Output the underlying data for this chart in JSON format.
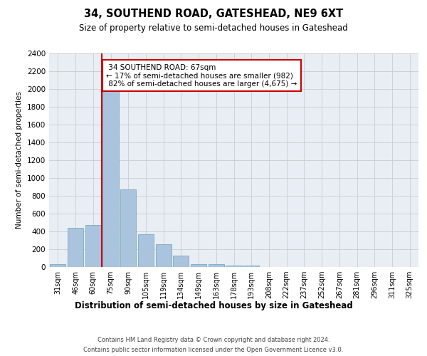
{
  "title": "34, SOUTHEND ROAD, GATESHEAD, NE9 6XT",
  "subtitle": "Size of property relative to semi-detached houses in Gateshead",
  "xlabel": "Distribution of semi-detached houses by size in Gateshead",
  "ylabel": "Number of semi-detached properties",
  "bar_labels": [
    "31sqm",
    "46sqm",
    "60sqm",
    "75sqm",
    "90sqm",
    "105sqm",
    "119sqm",
    "134sqm",
    "149sqm",
    "163sqm",
    "178sqm",
    "193sqm",
    "208sqm",
    "222sqm",
    "237sqm",
    "252sqm",
    "267sqm",
    "281sqm",
    "296sqm",
    "311sqm",
    "325sqm"
  ],
  "bar_values": [
    30,
    440,
    470,
    2000,
    870,
    370,
    255,
    130,
    35,
    30,
    20,
    15,
    0,
    0,
    0,
    0,
    0,
    0,
    0,
    0,
    0
  ],
  "bar_color": "#aac4de",
  "bar_edgecolor": "#7baabf",
  "property_line_x": 2.5,
  "property_line_label": "34 SOUTHEND ROAD: 67sqm",
  "smaller_pct": "17%",
  "smaller_n": "982",
  "larger_pct": "82%",
  "larger_n": "4,675",
  "annotation_box_color": "#cc0000",
  "vline_color": "#cc0000",
  "ylim": [
    0,
    2400
  ],
  "yticks": [
    0,
    200,
    400,
    600,
    800,
    1000,
    1200,
    1400,
    1600,
    1800,
    2000,
    2200,
    2400
  ],
  "grid_color": "#cccccc",
  "background_color": "#e8eef4",
  "footer_line1": "Contains HM Land Registry data © Crown copyright and database right 2024.",
  "footer_line2": "Contains public sector information licensed under the Open Government Licence v3.0."
}
